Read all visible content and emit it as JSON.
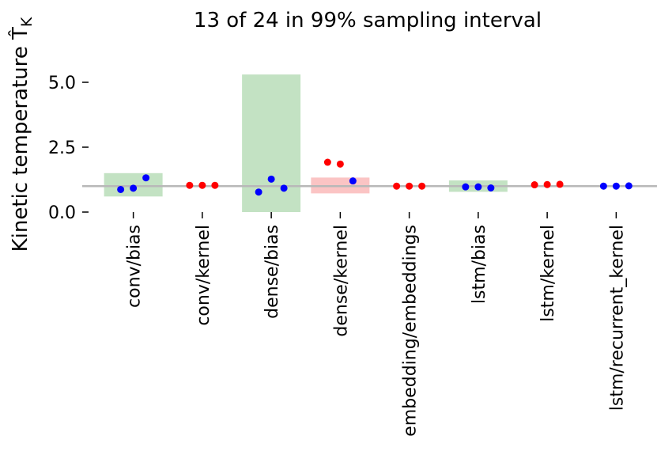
{
  "chart_data": {
    "type": "scatter",
    "title": "13 of 24 in 99% sampling interval",
    "xlabel": "",
    "ylabel": "Kinetic temperature T̂",
    "ylabel_subscript": "K",
    "ylim": [
      0.0,
      5.5
    ],
    "yticks": [
      0.0,
      2.5,
      5.0
    ],
    "ytick_labels": [
      "0.0",
      "2.5",
      "5.0"
    ],
    "reference_line": 1.0,
    "grid": false,
    "legend": "none",
    "colors": {
      "in_interval_point": "#0000ff",
      "out_interval_point": "#ff0000",
      "in_interval_band": "#c3e2c3",
      "out_interval_band": "#fbc4c4",
      "reference_line": "#b8b8b8",
      "tick": "#000000"
    },
    "categories": [
      "conv/bias",
      "conv/kernel",
      "dense/bias",
      "dense/kernel",
      "embedding/embeddings",
      "lstm/bias",
      "lstm/kernel",
      "lstm/recurrent_kernel"
    ],
    "groups": [
      {
        "category": "conv/bias",
        "interval": [
          0.6,
          1.5
        ],
        "band_status": "in",
        "points": [
          {
            "value": 0.87,
            "status": "in"
          },
          {
            "value": 0.92,
            "status": "in"
          },
          {
            "value": 1.32,
            "status": "in"
          }
        ]
      },
      {
        "category": "conv/kernel",
        "interval": [
          0.98,
          1.02
        ],
        "band_status": "out",
        "points": [
          {
            "value": 1.03,
            "status": "out"
          },
          {
            "value": 1.03,
            "status": "out"
          },
          {
            "value": 1.03,
            "status": "out"
          }
        ]
      },
      {
        "category": "dense/bias",
        "interval": [
          0.0,
          5.3
        ],
        "band_status": "in",
        "points": [
          {
            "value": 0.77,
            "status": "in"
          },
          {
            "value": 1.27,
            "status": "in"
          },
          {
            "value": 0.92,
            "status": "in"
          }
        ]
      },
      {
        "category": "dense/kernel",
        "interval": [
          0.72,
          1.33
        ],
        "band_status": "out",
        "points": [
          {
            "value": 1.92,
            "status": "out"
          },
          {
            "value": 1.85,
            "status": "out"
          },
          {
            "value": 1.2,
            "status": "in"
          }
        ]
      },
      {
        "category": "embedding/embeddings",
        "interval": [
          0.98,
          1.02
        ],
        "band_status": "out",
        "points": [
          {
            "value": 1.0,
            "status": "out"
          },
          {
            "value": 1.0,
            "status": "out"
          },
          {
            "value": 1.0,
            "status": "out"
          }
        ]
      },
      {
        "category": "lstm/bias",
        "interval": [
          0.78,
          1.22
        ],
        "band_status": "in",
        "points": [
          {
            "value": 0.97,
            "status": "in"
          },
          {
            "value": 0.97,
            "status": "in"
          },
          {
            "value": 0.93,
            "status": "in"
          }
        ]
      },
      {
        "category": "lstm/kernel",
        "interval": [
          0.98,
          1.02
        ],
        "band_status": "out",
        "points": [
          {
            "value": 1.05,
            "status": "out"
          },
          {
            "value": 1.06,
            "status": "out"
          },
          {
            "value": 1.07,
            "status": "out"
          }
        ]
      },
      {
        "category": "lstm/recurrent_kernel",
        "interval": [
          0.97,
          1.03
        ],
        "band_status": "in",
        "points": [
          {
            "value": 1.0,
            "status": "in"
          },
          {
            "value": 1.0,
            "status": "in"
          },
          {
            "value": 1.01,
            "status": "in"
          }
        ]
      }
    ]
  }
}
